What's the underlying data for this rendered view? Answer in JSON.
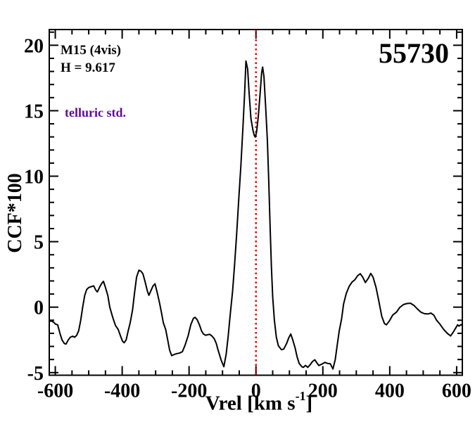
{
  "annotations": {
    "target_label": "M15 (4vis)",
    "h_mag_label": "H = 9.617",
    "type_label": "telluric std.",
    "mjd_label": "55730"
  },
  "axes": {
    "ylabel": "CCF*100",
    "xlabel_prefix": "Vrel [km s",
    "xlabel_sup": "-1",
    "xlabel_suffix": "]"
  },
  "colors": {
    "curve": "#000000",
    "frame": "#000000",
    "zero_line": "#ee0000",
    "type_label_color": "#5e0a9e"
  },
  "chart_data": {
    "type": "line",
    "title": "55730",
    "xlabel": "Vrel [km s^-1]",
    "ylabel": "CCF*100",
    "xlim": [
      -618,
      617
    ],
    "ylim": [
      -5.2,
      21.2
    ],
    "x_major_ticks": [
      -600,
      -400,
      -200,
      0,
      200,
      400,
      600
    ],
    "x_minor_step": 50,
    "y_major_ticks": [
      -5,
      0,
      5,
      10,
      15,
      20
    ],
    "y_minor_step": 1,
    "grid": false,
    "legend": "none",
    "vline": {
      "x": 0,
      "style": "dotted",
      "color": "#ee0000"
    },
    "series": [
      {
        "name": "CCF",
        "color": "#000000",
        "points": [
          [
            -618,
            -1.1
          ],
          [
            -612,
            -1.05
          ],
          [
            -605,
            -1.15
          ],
          [
            -599,
            -1.3
          ],
          [
            -593,
            -1.35
          ],
          [
            -586,
            -2.0
          ],
          [
            -580,
            -2.5
          ],
          [
            -573,
            -2.78
          ],
          [
            -568,
            -2.82
          ],
          [
            -561,
            -2.5
          ],
          [
            -555,
            -2.3
          ],
          [
            -548,
            -2.22
          ],
          [
            -542,
            -2.3
          ],
          [
            -536,
            -2.15
          ],
          [
            -530,
            -1.8
          ],
          [
            -524,
            -1.0
          ],
          [
            -518,
            0.0
          ],
          [
            -512,
            0.9
          ],
          [
            -506,
            1.35
          ],
          [
            -500,
            1.5
          ],
          [
            -492,
            1.57
          ],
          [
            -485,
            1.62
          ],
          [
            -479,
            1.3
          ],
          [
            -474,
            1.16
          ],
          [
            -466,
            1.6
          ],
          [
            -460,
            1.85
          ],
          [
            -456,
            1.97
          ],
          [
            -450,
            1.5
          ],
          [
            -443,
            0.89
          ],
          [
            -437,
            0.0
          ],
          [
            -428,
            -0.8
          ],
          [
            -420,
            -1.4
          ],
          [
            -412,
            -1.7
          ],
          [
            -405,
            -2.2
          ],
          [
            -399,
            -2.6
          ],
          [
            -394,
            -2.72
          ],
          [
            -388,
            -2.5
          ],
          [
            -382,
            -1.8
          ],
          [
            -376,
            -1.2
          ],
          [
            -369,
            -0.2
          ],
          [
            -363,
            1.1
          ],
          [
            -357,
            2.3
          ],
          [
            -350,
            2.82
          ],
          [
            -344,
            2.75
          ],
          [
            -338,
            2.55
          ],
          [
            -332,
            2.0
          ],
          [
            -325,
            1.25
          ],
          [
            -320,
            0.9
          ],
          [
            -315,
            1.2
          ],
          [
            -308,
            1.6
          ],
          [
            -302,
            1.79
          ],
          [
            -296,
            1.2
          ],
          [
            -289,
            0.4
          ],
          [
            -283,
            -0.35
          ],
          [
            -277,
            -1.2
          ],
          [
            -270,
            -1.7
          ],
          [
            -264,
            -2.5
          ],
          [
            -258,
            -3.3
          ],
          [
            -252,
            -3.7
          ],
          [
            -245,
            -3.62
          ],
          [
            -237,
            -3.55
          ],
          [
            -228,
            -3.5
          ],
          [
            -220,
            -3.4
          ],
          [
            -212,
            -2.9
          ],
          [
            -203,
            -2.2
          ],
          [
            -195,
            -1.35
          ],
          [
            -187,
            -0.85
          ],
          [
            -182,
            -0.78
          ],
          [
            -176,
            -0.95
          ],
          [
            -169,
            -1.35
          ],
          [
            -163,
            -1.8
          ],
          [
            -157,
            -2.05
          ],
          [
            -150,
            -2.15
          ],
          [
            -144,
            -2.1
          ],
          [
            -138,
            -2.08
          ],
          [
            -132,
            -2.2
          ],
          [
            -125,
            -2.4
          ],
          [
            -119,
            -2.75
          ],
          [
            -113,
            -3.3
          ],
          [
            -104,
            -4.05
          ],
          [
            -96,
            -4.55
          ],
          [
            -89,
            -3.6
          ],
          [
            -83,
            -2.2
          ],
          [
            -77,
            -0.6
          ],
          [
            -70,
            1.2
          ],
          [
            -64,
            3.2
          ],
          [
            -58,
            5.5
          ],
          [
            -52,
            8.0
          ],
          [
            -45,
            10.8
          ],
          [
            -39,
            13.7
          ],
          [
            -34,
            16.3
          ],
          [
            -30,
            18.8
          ],
          [
            -25,
            18.2
          ],
          [
            -20,
            16.2
          ],
          [
            -15,
            14.4
          ],
          [
            -9,
            13.5
          ],
          [
            -5,
            13.1
          ],
          [
            -2,
            12.98
          ],
          [
            2,
            13.4
          ],
          [
            7,
            14.6
          ],
          [
            13,
            16.5
          ],
          [
            17,
            17.9
          ],
          [
            20,
            18.33
          ],
          [
            24,
            17.6
          ],
          [
            29,
            15.3
          ],
          [
            34,
            12.8
          ],
          [
            38,
            9.8
          ],
          [
            42,
            6.4
          ],
          [
            46,
            3.2
          ],
          [
            50,
            0.8
          ],
          [
            55,
            -1.0
          ],
          [
            61,
            -2.3
          ],
          [
            67,
            -2.95
          ],
          [
            76,
            -3.25
          ],
          [
            83,
            -3.2
          ],
          [
            92,
            -2.75
          ],
          [
            98,
            -2.35
          ],
          [
            104,
            -2.05
          ],
          [
            110,
            -2.5
          ],
          [
            117,
            -3.1
          ],
          [
            123,
            -3.8
          ],
          [
            129,
            -4.3
          ],
          [
            137,
            -4.55
          ],
          [
            142,
            -4.6
          ],
          [
            148,
            -4.45
          ],
          [
            155,
            -4.6
          ],
          [
            162,
            -4.4
          ],
          [
            169,
            -4.15
          ],
          [
            176,
            -4.02
          ],
          [
            182,
            -4.25
          ],
          [
            188,
            -4.46
          ],
          [
            197,
            -4.35
          ],
          [
            206,
            -4.22
          ],
          [
            214,
            -4.3
          ],
          [
            222,
            -4.32
          ],
          [
            230,
            -4.72
          ],
          [
            237,
            -4.0
          ],
          [
            243,
            -2.9
          ],
          [
            249,
            -1.8
          ],
          [
            256,
            -0.9
          ],
          [
            262,
            0.25
          ],
          [
            270,
            1.05
          ],
          [
            279,
            1.6
          ],
          [
            287,
            1.9
          ],
          [
            296,
            2.1
          ],
          [
            304,
            2.4
          ],
          [
            312,
            2.55
          ],
          [
            319,
            2.3
          ],
          [
            327,
            1.88
          ],
          [
            336,
            2.2
          ],
          [
            343,
            2.57
          ],
          [
            350,
            2.3
          ],
          [
            359,
            1.5
          ],
          [
            367,
            0.5
          ],
          [
            376,
            -0.7
          ],
          [
            384,
            -1.25
          ],
          [
            390,
            -1.35
          ],
          [
            399,
            -1.05
          ],
          [
            409,
            -0.6
          ],
          [
            420,
            -0.38
          ],
          [
            430,
            -0.02
          ],
          [
            441,
            0.2
          ],
          [
            452,
            0.28
          ],
          [
            462,
            0.3
          ],
          [
            473,
            0.12
          ],
          [
            483,
            -0.15
          ],
          [
            494,
            -0.4
          ],
          [
            504,
            -0.5
          ],
          [
            515,
            -0.52
          ],
          [
            523,
            -0.45
          ],
          [
            532,
            -0.62
          ],
          [
            540,
            -1.0
          ],
          [
            550,
            -1.3
          ],
          [
            561,
            -1.7
          ],
          [
            572,
            -2.0
          ],
          [
            582,
            -2.2
          ],
          [
            590,
            -1.9
          ],
          [
            597,
            -1.6
          ],
          [
            603,
            -1.35
          ],
          [
            607,
            -1.45
          ],
          [
            613,
            -1.33
          ],
          [
            617,
            -1.4
          ]
        ]
      }
    ]
  }
}
